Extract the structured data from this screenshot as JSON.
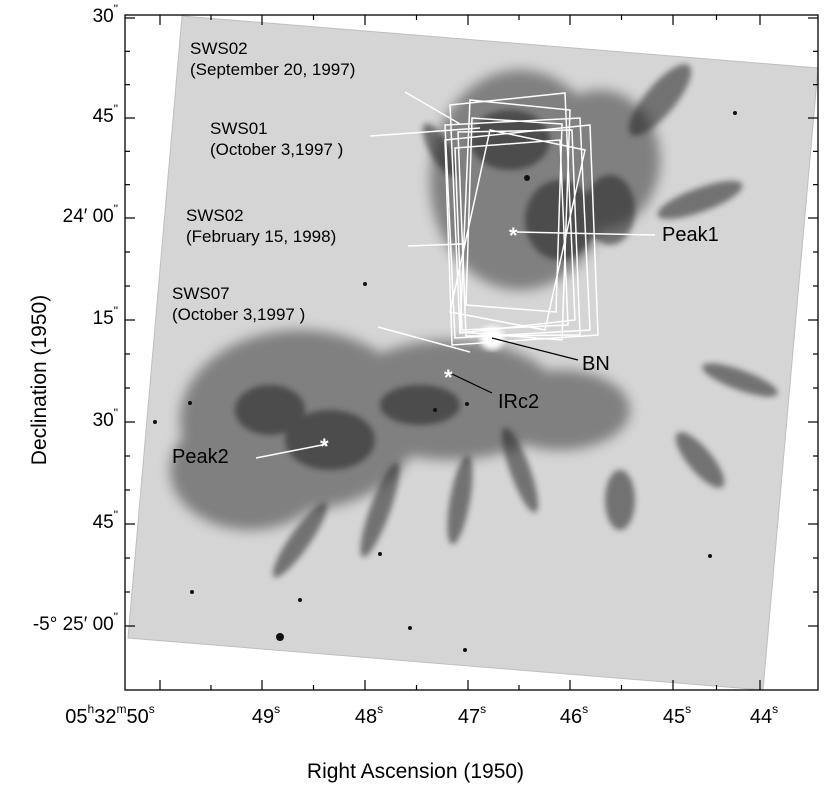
{
  "figure": {
    "x_axis_title": "Right Ascension (1950)",
    "y_axis_title": "Declination (1950)",
    "y_ticks": [
      {
        "h": "30",
        "sup": "\""
      },
      {
        "h": "45",
        "sup": "\""
      },
      {
        "h": "24′ 00",
        "sup": "\""
      },
      {
        "h": "15",
        "sup": "\""
      },
      {
        "h": "30",
        "sup": "\""
      },
      {
        "h": "45",
        "sup": "\""
      },
      {
        "h": "-5° 25′ 00",
        "sup": "\""
      }
    ],
    "x_ticks": [
      {
        "text": "05",
        "sup1": "h",
        "mid": "32",
        "sup2": "m",
        "end": "50",
        "sup3": "s"
      },
      {
        "text": "49",
        "sup1": "s"
      },
      {
        "text": "48",
        "sup1": "s"
      },
      {
        "text": "47",
        "sup1": "s"
      },
      {
        "text": "46",
        "sup1": "s"
      },
      {
        "text": "45",
        "sup1": "s"
      },
      {
        "text": "44",
        "sup1": "s"
      }
    ],
    "annotations": {
      "sws02_sep_line1": "SWS02",
      "sws02_sep_line2": "(September 20, 1997)",
      "sws01_line1": "SWS01",
      "sws01_line2": "(October 3,1997 )",
      "sws02_feb_line1": "SWS02",
      "sws02_feb_line2": "(February 15, 1998)",
      "sws07_line1": "SWS07",
      "sws07_line2": "(October 3,1997 )",
      "peak1": "Peak1",
      "peak2": "Peak2",
      "bn": "BN",
      "irc2": "IRc2"
    },
    "colors": {
      "background": "#ffffff",
      "image_base": "#d6d6d6",
      "overlay": "#ffffff"
    }
  }
}
